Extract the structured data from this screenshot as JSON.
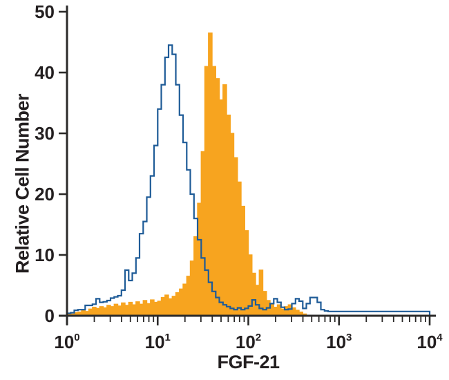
{
  "colors": {
    "filled_series": "#F7A41F",
    "open_series": "#1E5B97",
    "axis": "#2B2A29",
    "text": "#231F20",
    "background": "#FFFFFF"
  },
  "chart_data": {
    "type": "area",
    "subtype": "flow-cytometry-overlay-histogram",
    "xlabel": "FGF-21",
    "ylabel": "Relative Cell Number",
    "x_scale": "log10",
    "xlim": [
      1,
      10000
    ],
    "ylim": [
      0,
      50
    ],
    "grid": false,
    "legend": "none",
    "y_ticks": [
      0,
      10,
      20,
      30,
      40,
      50
    ],
    "x_ticks": [
      {
        "text": "10",
        "sup": "0",
        "log": 0
      },
      {
        "text": "10",
        "sup": "1",
        "log": 1
      },
      {
        "text": "10",
        "sup": "2",
        "log": 2
      },
      {
        "text": "10",
        "sup": "3",
        "log": 3
      },
      {
        "text": "10",
        "sup": "4",
        "log": 4
      }
    ],
    "minor_tick_multiples": [
      2,
      3,
      4,
      5,
      6,
      7,
      8,
      9
    ],
    "minor_tick_decades": [
      0,
      1,
      2,
      3
    ],
    "bin_log10_start": 0,
    "bin_log10_step": 0.04,
    "series": [
      {
        "name": "filled",
        "style": "filled",
        "color": "#F7A41F",
        "values": [
          0.3,
          0.3,
          0.5,
          0.6,
          0.9,
          0.7,
          1.1,
          1.4,
          1.2,
          1.5,
          1.3,
          1.7,
          1.5,
          1.9,
          1.6,
          2.1,
          1.7,
          2.2,
          1.8,
          2.3,
          1.9,
          2.5,
          2.0,
          2.6,
          2.2,
          2.4,
          3.0,
          3.4,
          2.8,
          3.2,
          3.8,
          4.4,
          5.2,
          6.5,
          9.0,
          13.0,
          18.5,
          27.0,
          41.0,
          46.5,
          41.0,
          39.0,
          35.5,
          38.0,
          33.0,
          30.0,
          26.0,
          22.0,
          18.0,
          14.0,
          10.0,
          7.0,
          5.0,
          7.5,
          4.0,
          2.5,
          1.8,
          1.4,
          1.8,
          1.1,
          1.5,
          1.8,
          1.3,
          0.9,
          0.6,
          0.3,
          0,
          0,
          0,
          0,
          0,
          0,
          0,
          0,
          0,
          0,
          0,
          0,
          0,
          0,
          0,
          0,
          0,
          0,
          0,
          0,
          0,
          0,
          0,
          0,
          0,
          0,
          0,
          0,
          0,
          0,
          0,
          0,
          0,
          0
        ]
      },
      {
        "name": "open",
        "style": "open",
        "color": "#1E5B97",
        "values": [
          0.4,
          0.5,
          0.9,
          1.0,
          1.0,
          1.7,
          1.7,
          1.9,
          2.8,
          2.2,
          2.3,
          2.5,
          2.9,
          3.1,
          3.3,
          4.2,
          7.5,
          5.8,
          7.0,
          9.5,
          13.5,
          15.5,
          19.5,
          23.0,
          28.0,
          34.0,
          38.0,
          42.5,
          44.5,
          43.0,
          38.0,
          33.0,
          28.5,
          24.0,
          20.0,
          16.0,
          12.5,
          9.5,
          7.5,
          5.5,
          4.0,
          3.0,
          2.2,
          1.8,
          1.5,
          1.2,
          1.0,
          1.3,
          1.0,
          1.2,
          1.6,
          2.6,
          1.8,
          1.2,
          1.0,
          1.3,
          2.0,
          2.8,
          2.2,
          1.4,
          1.0,
          1.1,
          2.0,
          2.8,
          2.4,
          1.2,
          2.0,
          3.0,
          3.0,
          2.2,
          1.0,
          0.8,
          0.7,
          0.7,
          0.7,
          0.7,
          0.7,
          0.7,
          0.7,
          0.7,
          0.7,
          0.7,
          0.7,
          0.7,
          0.7,
          0.7,
          0.7,
          0.7,
          0.7,
          0.7,
          0.7,
          0.7,
          0.7,
          0.7,
          0.7,
          0.7,
          0.7,
          0.7,
          0.7,
          0.7
        ]
      }
    ]
  }
}
